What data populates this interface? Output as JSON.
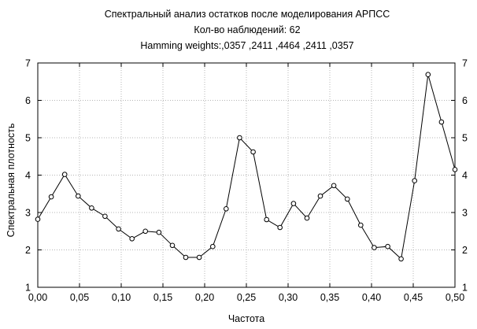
{
  "chart_data": {
    "type": "line",
    "title": "Спектральный анализ остатков после моделирования АРПСС",
    "subtitle_lines": [
      "Кол-во наблюдений: 62",
      "Hamming weights:,0357 ,2411 ,4464 ,2411 ,0357"
    ],
    "xlabel": "Частота",
    "ylabel": "Спектральная плотность",
    "xlim": [
      0,
      0.5
    ],
    "ylim": [
      1,
      7
    ],
    "x_ticks": [
      "0,00",
      "0,05",
      "0,10",
      "0,15",
      "0,20",
      "0,25",
      "0,30",
      "0,35",
      "0,40",
      "0,45",
      "0,50"
    ],
    "y_ticks": [
      "1",
      "2",
      "3",
      "4",
      "5",
      "6",
      "7"
    ],
    "grid": true,
    "right_axis_mirror": true,
    "series": [
      {
        "line_color": "#000000",
        "marker": "open-circle",
        "x": [
          0.0,
          0.0161,
          0.0323,
          0.0484,
          0.0645,
          0.0806,
          0.0968,
          0.1129,
          0.129,
          0.1452,
          0.1613,
          0.1774,
          0.1935,
          0.2097,
          0.2258,
          0.2419,
          0.2581,
          0.2742,
          0.2903,
          0.3065,
          0.3226,
          0.3387,
          0.3548,
          0.371,
          0.3871,
          0.4032,
          0.4194,
          0.4355,
          0.4516,
          0.4677,
          0.4839,
          0.5
        ],
        "y": [
          2.82,
          3.42,
          4.02,
          3.44,
          3.12,
          2.9,
          2.56,
          2.3,
          2.5,
          2.47,
          2.12,
          1.8,
          1.8,
          2.09,
          3.1,
          5.0,
          4.62,
          2.81,
          2.6,
          3.24,
          2.85,
          3.44,
          3.72,
          3.36,
          2.66,
          2.06,
          2.09,
          1.76,
          3.85,
          6.69,
          5.42,
          4.15
        ]
      }
    ]
  }
}
